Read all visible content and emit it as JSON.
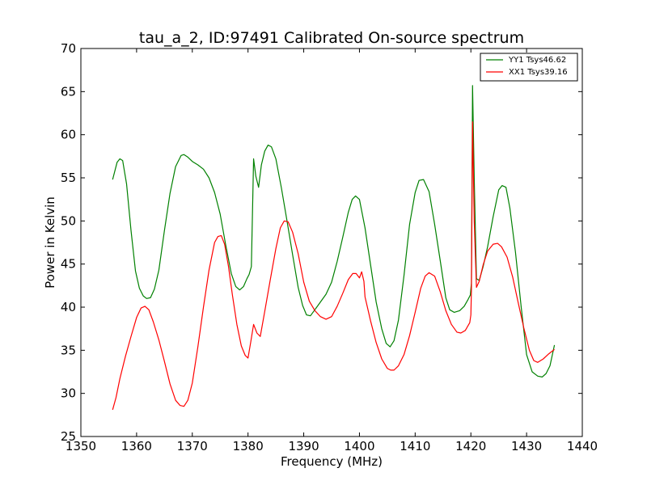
{
  "chart_data": {
    "type": "line",
    "title": "tau_a_2, ID:97491 Calibrated On-source spectrum",
    "xlabel": "Frequency (MHz)",
    "ylabel": "Power in Kelvin",
    "xlim": [
      1350,
      1440
    ],
    "ylim": [
      25,
      70
    ],
    "xticks": [
      1350,
      1360,
      1370,
      1380,
      1390,
      1400,
      1410,
      1420,
      1430,
      1440
    ],
    "yticks": [
      25,
      30,
      35,
      40,
      45,
      50,
      55,
      60,
      65,
      70
    ],
    "grid": false,
    "legend_position": "top-right",
    "series": [
      {
        "name": "YY1 Tsys46.62",
        "color": "#008000",
        "x": [
          1355.7,
          1356.5,
          1357.0,
          1357.5,
          1358.2,
          1359.0,
          1359.8,
          1360.5,
          1361.2,
          1361.8,
          1362.5,
          1363.2,
          1364.0,
          1365.0,
          1366.0,
          1367.0,
          1368.0,
          1368.5,
          1369.2,
          1370.0,
          1371.0,
          1372.0,
          1373.0,
          1374.0,
          1375.0,
          1376.0,
          1377.0,
          1377.8,
          1378.5,
          1379.2,
          1379.8,
          1380.2,
          1380.6,
          1381.0,
          1381.4,
          1381.9,
          1382.4,
          1383.0,
          1383.6,
          1384.2,
          1385.0,
          1386.0,
          1387.0,
          1388.0,
          1389.0,
          1389.8,
          1390.5,
          1391.2,
          1392.0,
          1393.0,
          1394.0,
          1395.0,
          1396.0,
          1397.0,
          1398.0,
          1398.7,
          1399.3,
          1400.0,
          1401.0,
          1402.0,
          1403.0,
          1404.0,
          1404.8,
          1405.5,
          1406.2,
          1407.0,
          1408.0,
          1409.0,
          1410.0,
          1410.7,
          1411.5,
          1412.5,
          1413.5,
          1414.5,
          1415.5,
          1416.2,
          1417.0,
          1418.0,
          1418.8,
          1419.5,
          1419.9,
          1420.1,
          1420.3,
          1420.6,
          1421.0,
          1421.5,
          1422.2,
          1423.0,
          1424.0,
          1425.0,
          1425.6,
          1426.3,
          1427.0,
          1428.0,
          1429.0,
          1430.0,
          1431.0,
          1432.0,
          1432.8,
          1433.5,
          1434.2,
          1435.0
        ],
        "y": [
          54.8,
          56.8,
          57.2,
          57.0,
          54.3,
          48.9,
          44.2,
          42.2,
          41.3,
          41.0,
          41.1,
          42.1,
          44.3,
          48.9,
          53.2,
          56.3,
          57.6,
          57.7,
          57.4,
          56.9,
          56.5,
          56.0,
          55.0,
          53.3,
          50.8,
          47.2,
          43.9,
          42.4,
          42.0,
          42.4,
          43.3,
          43.8,
          44.7,
          57.2,
          55.2,
          53.9,
          56.5,
          58.1,
          58.8,
          58.6,
          57.2,
          53.8,
          50.0,
          46.1,
          42.3,
          40.2,
          39.1,
          39.0,
          39.7,
          40.6,
          41.5,
          42.9,
          45.3,
          48.1,
          51.0,
          52.5,
          52.9,
          52.5,
          49.2,
          44.9,
          40.6,
          37.5,
          35.8,
          35.4,
          36.1,
          38.5,
          43.7,
          49.6,
          53.3,
          54.7,
          54.8,
          53.4,
          49.6,
          45.4,
          41.1,
          39.7,
          39.4,
          39.6,
          40.1,
          40.9,
          41.4,
          42.8,
          65.7,
          55.0,
          43.3,
          43.1,
          44.7,
          47.0,
          50.5,
          53.6,
          54.1,
          53.9,
          51.5,
          46.4,
          40.2,
          34.5,
          32.5,
          32.0,
          31.9,
          32.3,
          33.2,
          35.6
        ]
      },
      {
        "name": "XX1 Tsys39.16",
        "color": "#ff0000",
        "x": [
          1355.7,
          1356.3,
          1357.0,
          1358.0,
          1359.0,
          1360.0,
          1360.8,
          1361.5,
          1362.2,
          1363.0,
          1364.0,
          1365.0,
          1366.0,
          1367.0,
          1367.8,
          1368.5,
          1369.2,
          1370.0,
          1371.0,
          1372.0,
          1373.0,
          1374.0,
          1374.6,
          1375.2,
          1375.8,
          1376.5,
          1377.2,
          1378.0,
          1378.8,
          1379.5,
          1380.0,
          1380.5,
          1381.0,
          1381.6,
          1382.2,
          1383.0,
          1384.0,
          1385.0,
          1385.8,
          1386.5,
          1387.2,
          1388.0,
          1389.0,
          1390.0,
          1391.0,
          1392.0,
          1393.0,
          1394.0,
          1395.0,
          1396.0,
          1397.0,
          1398.0,
          1398.8,
          1399.4,
          1400.0,
          1400.4,
          1400.8,
          1401.0,
          1402.0,
          1403.0,
          1404.0,
          1405.0,
          1405.6,
          1406.2,
          1407.0,
          1408.0,
          1409.0,
          1410.0,
          1411.0,
          1411.8,
          1412.5,
          1413.5,
          1414.5,
          1415.5,
          1416.5,
          1417.5,
          1418.2,
          1419.0,
          1419.8,
          1420.0,
          1420.1,
          1420.3,
          1420.6,
          1421.0,
          1421.5,
          1422.2,
          1423.0,
          1424.0,
          1424.8,
          1425.5,
          1426.5,
          1427.5,
          1428.5,
          1429.5,
          1430.5,
          1431.3,
          1432.0,
          1433.0,
          1434.0,
          1435.0
        ],
        "y": [
          28.1,
          29.5,
          31.7,
          34.3,
          36.6,
          38.8,
          39.9,
          40.1,
          39.7,
          38.3,
          36.2,
          33.7,
          31.1,
          29.2,
          28.6,
          28.5,
          29.2,
          31.2,
          35.4,
          40.0,
          44.3,
          47.5,
          48.2,
          48.3,
          47.3,
          44.7,
          41.4,
          38.0,
          35.5,
          34.4,
          34.1,
          36.0,
          38.0,
          37.0,
          36.6,
          39.5,
          43.2,
          46.8,
          49.2,
          50.0,
          49.9,
          48.7,
          46.2,
          42.9,
          40.7,
          39.6,
          38.9,
          38.6,
          38.9,
          40.1,
          41.6,
          43.2,
          43.9,
          43.9,
          43.4,
          44.1,
          43.0,
          41.2,
          38.4,
          35.9,
          34.0,
          32.9,
          32.7,
          32.7,
          33.2,
          34.5,
          36.7,
          39.4,
          42.2,
          43.6,
          44.0,
          43.6,
          41.8,
          39.6,
          38.0,
          37.1,
          37.0,
          37.3,
          38.2,
          39.1,
          42.0,
          61.5,
          50.0,
          42.3,
          43.0,
          44.9,
          46.5,
          47.3,
          47.4,
          47.0,
          45.8,
          43.5,
          40.5,
          37.6,
          35.0,
          33.8,
          33.6,
          34.0,
          34.6,
          35.1
        ]
      }
    ]
  }
}
